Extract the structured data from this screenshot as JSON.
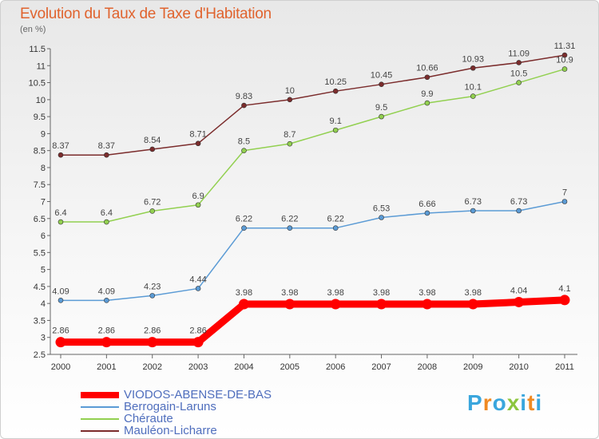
{
  "title": "Evolution du Taux de Taxe d'Habitation",
  "unit": "(en %)",
  "brand": {
    "text": "Proxiti",
    "colors": [
      "#3aa6dd",
      "#f08a22",
      "#3aa6dd",
      "#8cc63f",
      "#3aa6dd",
      "#f08a22",
      "#3aa6dd"
    ]
  },
  "chart_data": {
    "type": "line",
    "x": [
      "2000",
      "2001",
      "2002",
      "2003",
      "2004",
      "2005",
      "2006",
      "2007",
      "2008",
      "2009",
      "2010",
      "2011"
    ],
    "ylim": [
      2.5,
      11.5
    ],
    "yticks": [
      "2.5",
      "3",
      "3.5",
      "4",
      "4.5",
      "5",
      "5.5",
      "6",
      "6.5",
      "7",
      "7.5",
      "8",
      "8.5",
      "9",
      "9.5",
      "10",
      "10.5",
      "11",
      "11.5"
    ],
    "grid": false,
    "legend_position": "bottom-left",
    "series": [
      {
        "name": "VIODOS-ABENSE-DE-BAS",
        "color": "#ff0000",
        "width": 9,
        "values": [
          2.86,
          2.86,
          2.86,
          2.86,
          3.98,
          3.98,
          3.98,
          3.98,
          3.98,
          3.98,
          4.04,
          4.1
        ],
        "labels": [
          "2.86",
          "2.86",
          "2.86",
          "2.86",
          "3.98",
          "3.98",
          "3.98",
          "3.98",
          "3.98",
          "3.98",
          "4.04",
          "4.1"
        ]
      },
      {
        "name": "Berrogain-Laruns",
        "color": "#5b9bd5",
        "width": 1.5,
        "values": [
          4.09,
          4.09,
          4.23,
          4.44,
          6.22,
          6.22,
          6.22,
          6.53,
          6.66,
          6.73,
          6.73,
          7
        ],
        "labels": [
          "4.09",
          "4.09",
          "4.23",
          "4.44",
          "6.22",
          "6.22",
          "6.22",
          "6.53",
          "6.66",
          "6.73",
          "6.73",
          "7"
        ]
      },
      {
        "name": "Chéraute",
        "color": "#92d050",
        "width": 1.5,
        "values": [
          6.4,
          6.4,
          6.72,
          6.9,
          8.5,
          8.7,
          9.1,
          9.5,
          9.9,
          10.1,
          10.5,
          10.9
        ],
        "labels": [
          "6.4",
          "6.4",
          "6.72",
          "6.9",
          "8.5",
          "8.7",
          "9.1",
          "9.5",
          "9.9",
          "10.1",
          "10.5",
          "10.9"
        ]
      },
      {
        "name": "Mauléon-Licharre",
        "color": "#7b2c2c",
        "width": 1.5,
        "values": [
          8.37,
          8.37,
          8.54,
          8.71,
          9.83,
          10,
          10.25,
          10.45,
          10.66,
          10.93,
          11.09,
          11.31
        ],
        "labels": [
          "8.37",
          "8.37",
          "8.54",
          "8.71",
          "9.83",
          "10",
          "10.25",
          "10.45",
          "10.66",
          "10.93",
          "11.09",
          "11.31"
        ]
      }
    ]
  }
}
